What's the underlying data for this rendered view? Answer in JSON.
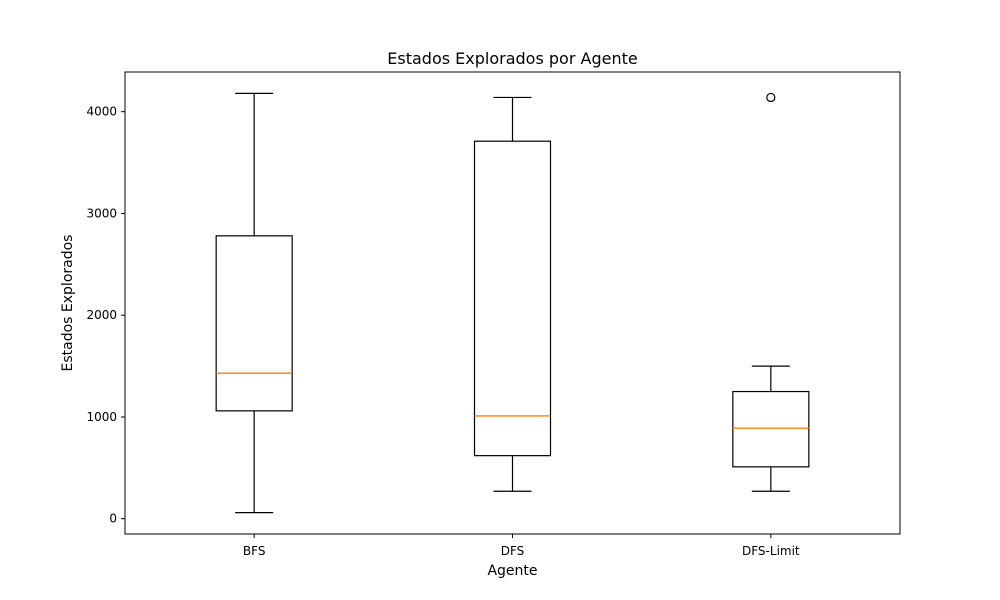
{
  "chart_data": {
    "type": "boxplot",
    "title": "Estados Explorados por Agente",
    "xlabel": "Agente",
    "ylabel": "Estados Explorados",
    "categories": [
      "BFS",
      "DFS",
      "DFS-Limit"
    ],
    "ylim": [
      -150,
      4390
    ],
    "yticks": [
      0,
      1000,
      2000,
      3000,
      4000
    ],
    "grid": false,
    "boxes": [
      {
        "label": "BFS",
        "whisker_low": 60,
        "q1": 1060,
        "median": 1430,
        "q3": 2780,
        "whisker_high": 4180,
        "outliers": []
      },
      {
        "label": "DFS",
        "whisker_low": 270,
        "q1": 620,
        "median": 1010,
        "q3": 3710,
        "whisker_high": 4140,
        "outliers": []
      },
      {
        "label": "DFS-Limit",
        "whisker_low": 270,
        "q1": 510,
        "median": 890,
        "q3": 1250,
        "whisker_high": 1500,
        "outliers": [
          4140
        ]
      }
    ],
    "colors": {
      "box": "#000000",
      "median": "#ff7f0e",
      "outlier": "#000000"
    }
  }
}
